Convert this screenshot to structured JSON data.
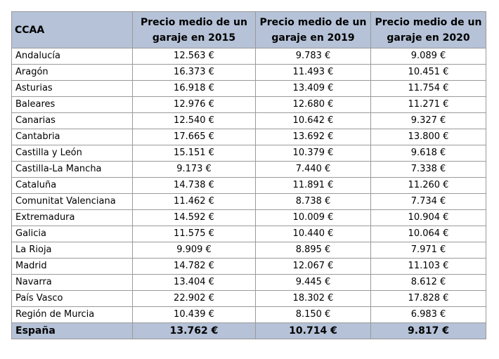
{
  "table": {
    "header": [
      "CCAA",
      "Precio medio de un garaje en 2015",
      "Precio medio de un garaje en 2019",
      "Precio medio de un garaje en 2020"
    ],
    "rows": [
      [
        "Andalucía",
        "12.563 €",
        "9.783 €",
        "9.089 €"
      ],
      [
        "Aragón",
        "16.373 €",
        "11.493 €",
        "10.451 €"
      ],
      [
        "Asturias",
        "16.918 €",
        "13.409 €",
        "11.754 €"
      ],
      [
        "Baleares",
        "12.976 €",
        "12.680 €",
        "11.271 €"
      ],
      [
        "Canarias",
        "12.540 €",
        "10.642 €",
        "9.327 €"
      ],
      [
        "Cantabria",
        "17.665 €",
        "13.692 €",
        "13.800 €"
      ],
      [
        "Castilla y León",
        "15.151 €",
        "10.379 €",
        "9.618 €"
      ],
      [
        "Castilla-La Mancha",
        "9.173 €",
        "7.440 €",
        "7.338 €"
      ],
      [
        "Cataluña",
        "14.738 €",
        "11.891 €",
        "11.260 €"
      ],
      [
        "Comunitat Valenciana",
        "11.462 €",
        "8.738 €",
        "7.734 €"
      ],
      [
        "Extremadura",
        "14.592 €",
        "10.009 €",
        "10.904 €"
      ],
      [
        "Galicia",
        "11.575 €",
        "10.440 €",
        "10.064 €"
      ],
      [
        "La Rioja",
        "9.909 €",
        "8.895 €",
        "7.971 €"
      ],
      [
        "Madrid",
        "14.782 €",
        "12.067 €",
        "11.103 €"
      ],
      [
        "Navarra",
        "13.404 €",
        "9.445 €",
        "8.612 €"
      ],
      [
        "País Vasco",
        "22.902 €",
        "18.302 €",
        "17.828 €"
      ],
      [
        "Región de Murcia",
        "10.439 €",
        "8.150 €",
        "6.983 €"
      ]
    ],
    "total": [
      "España",
      "13.762 €",
      "10.714 €",
      "9.817 €"
    ]
  }
}
